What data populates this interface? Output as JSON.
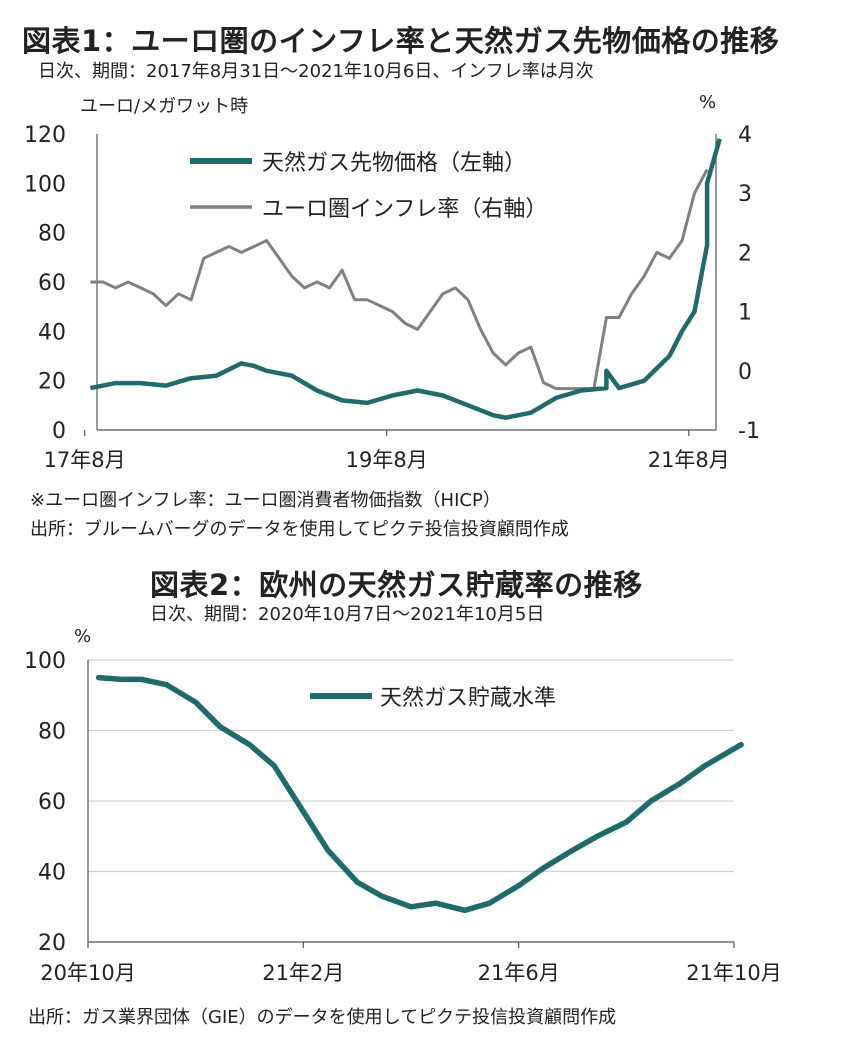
{
  "chart1": {
    "title": "図表1：ユーロ圏のインフレ率と天然ガス先物価格の推移",
    "subtitle": "日次、期間：2017年8月31日～2021年10月6日、インフレ率は月次",
    "left_unit": "ユーロ/メガワット時",
    "right_unit": "%",
    "notes": [
      "※ユーロ圏インフレ率：ユーロ圏消費者物価指数（HICP）",
      "出所：ブルームバーグのデータを使用してピクテ投信投資顧問作成"
    ]
  },
  "chart2": {
    "title": "図表2：欧州の天然ガス貯蔵率の推移",
    "subtitle": "日次、期間：2020年10月7日～2021年10月5日",
    "unit": "%",
    "note": "出所：ガス業界団体（GIE）のデータを使用してピクテ投信投資顧問作成"
  },
  "colors": {
    "gas": "#1e6b6b",
    "inflation": "#808080",
    "grid": "#cfcfcf",
    "axis": "#555555"
  },
  "chart_data": [
    {
      "type": "line",
      "title": "図表1：ユーロ圏のインフレ率と天然ガス先物価格の推移",
      "subtitle": "日次、期間：2017年8月31日～2021年10月6日、インフレ率は月次",
      "x_tick_labels": [
        "17年8月",
        "19年8月",
        "21年8月"
      ],
      "x_ticks": [
        "2017-08",
        "2019-08",
        "2021-08"
      ],
      "y_left": {
        "label": "ユーロ/メガワット時",
        "lim": [
          0,
          120
        ],
        "ticks": [
          0,
          20,
          40,
          60,
          80,
          100,
          120
        ]
      },
      "y_right": {
        "label": "%",
        "lim": [
          -1,
          4
        ],
        "ticks": [
          -1,
          0,
          1,
          2,
          3,
          4
        ]
      },
      "grid": false,
      "legend_position": "top-center",
      "series": [
        {
          "name": "天然ガス先物価格（左軸）",
          "axis": "left",
          "color": "#1e6b6b",
          "x": [
            "2017-08",
            "2017-10",
            "2017-12",
            "2018-02",
            "2018-04",
            "2018-06",
            "2018-08",
            "2018-09",
            "2018-10",
            "2018-12",
            "2019-02",
            "2019-04",
            "2019-06",
            "2019-08",
            "2019-10",
            "2019-12",
            "2020-02",
            "2020-04",
            "2020-05",
            "2020-07",
            "2020-09",
            "2020-11",
            "2021-01",
            "2021-01",
            "2021-02",
            "2021-04",
            "2021-06",
            "2021-07",
            "2021-08",
            "2021-09",
            "2021-09",
            "2021-10"
          ],
          "values": [
            17,
            19,
            19,
            18,
            21,
            22,
            27,
            26,
            24,
            22,
            16,
            12,
            11,
            14,
            16,
            14,
            10,
            6,
            5,
            7,
            13,
            16,
            17,
            24,
            17,
            20,
            30,
            40,
            48,
            75,
            100,
            118
          ]
        },
        {
          "name": "ユーロ圏インフレ率（右軸）",
          "axis": "right",
          "color": "#808080",
          "x": [
            "2017-08",
            "2017-09",
            "2017-10",
            "2017-11",
            "2017-12",
            "2018-01",
            "2018-02",
            "2018-03",
            "2018-04",
            "2018-05",
            "2018-06",
            "2018-07",
            "2018-08",
            "2018-09",
            "2018-10",
            "2018-11",
            "2018-12",
            "2019-01",
            "2019-02",
            "2019-03",
            "2019-04",
            "2019-05",
            "2019-06",
            "2019-07",
            "2019-08",
            "2019-09",
            "2019-10",
            "2019-11",
            "2019-12",
            "2020-01",
            "2020-02",
            "2020-03",
            "2020-04",
            "2020-05",
            "2020-06",
            "2020-07",
            "2020-08",
            "2020-09",
            "2020-10",
            "2020-11",
            "2020-12",
            "2021-01",
            "2021-02",
            "2021-03",
            "2021-04",
            "2021-05",
            "2021-06",
            "2021-07",
            "2021-08",
            "2021-09"
          ],
          "values": [
            1.5,
            1.5,
            1.4,
            1.5,
            1.4,
            1.3,
            1.1,
            1.3,
            1.2,
            1.9,
            2.0,
            2.1,
            2.0,
            2.1,
            2.2,
            1.9,
            1.6,
            1.4,
            1.5,
            1.4,
            1.7,
            1.2,
            1.2,
            1.1,
            1.0,
            0.8,
            0.7,
            1.0,
            1.3,
            1.4,
            1.2,
            0.7,
            0.3,
            0.1,
            0.3,
            0.4,
            -0.2,
            -0.3,
            -0.3,
            -0.3,
            -0.3,
            0.9,
            0.9,
            1.3,
            1.6,
            2.0,
            1.9,
            2.2,
            3.0,
            3.4
          ]
        }
      ]
    },
    {
      "type": "line",
      "title": "図表2：欧州の天然ガス貯蔵率の推移",
      "subtitle": "日次、期間：2020年10月7日～2021年10月5日",
      "x_tick_labels": [
        "20年10月",
        "21年2月",
        "21年6月",
        "21年10月"
      ],
      "x_ticks": [
        "2020-10",
        "2021-02",
        "2021-06",
        "2021-10"
      ],
      "y": {
        "label": "%",
        "lim": [
          20,
          100
        ],
        "ticks": [
          20,
          40,
          60,
          80,
          100
        ]
      },
      "grid": true,
      "legend_position": "top-center",
      "series": [
        {
          "name": "天然ガス貯蔵水準",
          "color": "#1e6b6b",
          "x": [
            "2020-10-07",
            "2020-10-20",
            "2020-11-01",
            "2020-11-15",
            "2020-12-01",
            "2020-12-15",
            "2021-01-01",
            "2021-01-15",
            "2021-02-01",
            "2021-02-15",
            "2021-03-01",
            "2021-03-15",
            "2021-04-01",
            "2021-04-15",
            "2021-05-01",
            "2021-05-15",
            "2021-06-01",
            "2021-06-15",
            "2021-07-01",
            "2021-07-15",
            "2021-08-01",
            "2021-08-15",
            "2021-09-01",
            "2021-09-15",
            "2021-10-05"
          ],
          "values": [
            95,
            94.5,
            94.5,
            93,
            88,
            81,
            76,
            70,
            57,
            46,
            37,
            33,
            30,
            31,
            29,
            31,
            36,
            41,
            46,
            50,
            54,
            60,
            65,
            70,
            76
          ]
        }
      ]
    }
  ]
}
